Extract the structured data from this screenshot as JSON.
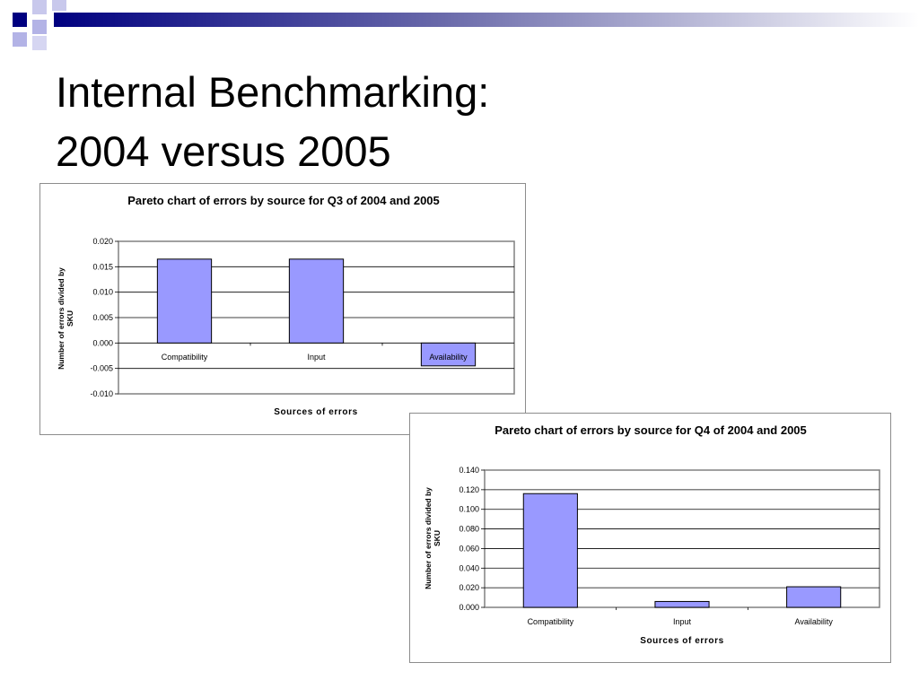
{
  "slide": {
    "title_line1": "Internal Benchmarking:",
    "title_line2": "2004 versus 2005"
  },
  "colors": {
    "bar_fill": "#9999ff",
    "bar_stroke": "#000000",
    "grid": "#000000",
    "plot_border": "#808080",
    "deco_navy": "#000080",
    "deco_lavender": "#b3b3e6"
  },
  "chart_data": [
    {
      "type": "bar",
      "title": "Pareto chart of errors by source for Q3 of 2004 and 2005",
      "xlabel": "Sources of errors",
      "ylabel": "Number of errors divided by SKU",
      "categories": [
        "Compatibility",
        "Input",
        "Availability"
      ],
      "values": [
        0.0165,
        0.0165,
        -0.0045
      ],
      "ylim": [
        -0.01,
        0.02
      ],
      "yticks": [
        "0.020",
        "0.015",
        "0.010",
        "0.005",
        "0.000",
        "-0.005",
        "-0.010"
      ],
      "ytick_values": [
        0.02,
        0.015,
        0.01,
        0.005,
        0.0,
        -0.005,
        -0.01
      ],
      "grid": true,
      "legend": "none"
    },
    {
      "type": "bar",
      "title": "Pareto chart of errors by source for Q4 of 2004 and 2005",
      "xlabel": "Sources of errors",
      "ylabel": "Number of errors divided by SKU",
      "categories": [
        "Compatibility",
        "Input",
        "Availability"
      ],
      "values": [
        0.116,
        0.006,
        0.021
      ],
      "ylim": [
        0.0,
        0.14
      ],
      "yticks": [
        "0.140",
        "0.120",
        "0.100",
        "0.080",
        "0.060",
        "0.040",
        "0.020",
        "0.000"
      ],
      "ytick_values": [
        0.14,
        0.12,
        0.1,
        0.08,
        0.06,
        0.04,
        0.02,
        0.0
      ],
      "grid": true,
      "legend": "none"
    }
  ]
}
